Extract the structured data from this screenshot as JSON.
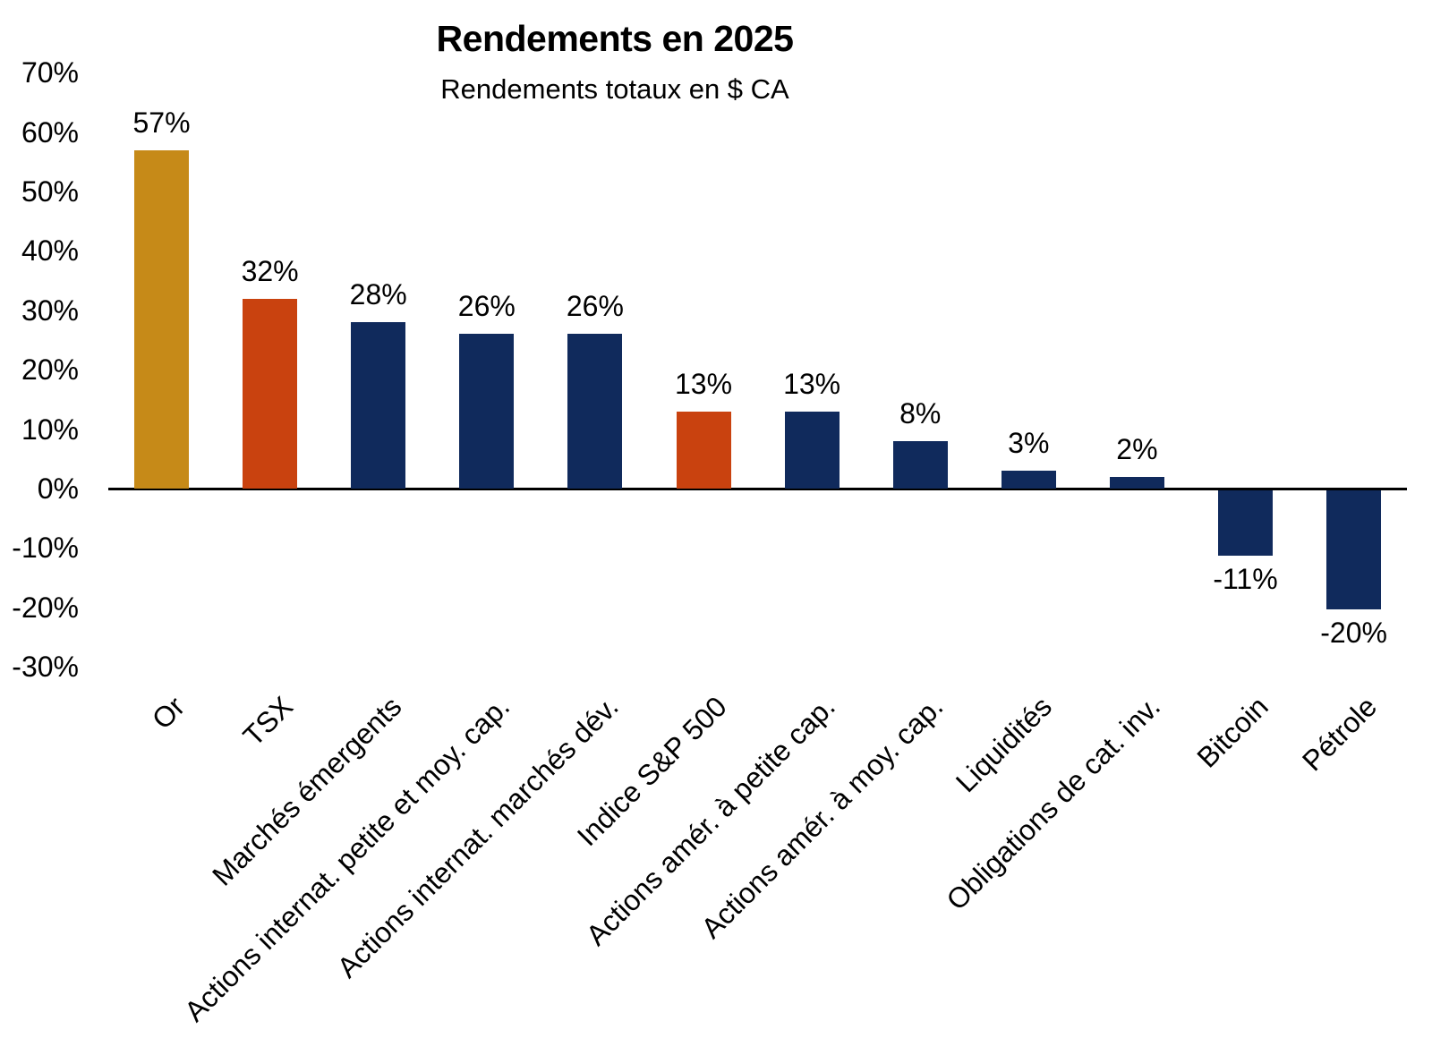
{
  "header": {
    "title": "Rendements en 2025",
    "subtitle": "Rendements totaux en $ CA"
  },
  "palette": {
    "gold": "#C68A18",
    "orange": "#C9420F",
    "navy": "#102A5C",
    "axis": "#000000",
    "background": "#FFFFFF",
    "text": "#000000"
  },
  "chart_data": {
    "type": "bar",
    "title": "Rendements en 2025",
    "subtitle": "Rendements totaux en $ CA",
    "categories": [
      "Or",
      "TSX",
      "Marchés émergents",
      "Actions internat. petite et moy. cap.",
      "Actions internat. marchés dév.",
      "Indice S&P 500",
      "Actions amér. à petite cap.",
      "Actions amér. à moy. cap.",
      "Liquidités",
      "Obligations de cat. inv.",
      "Bitcoin",
      "Pétrole"
    ],
    "values": [
      57,
      32,
      28,
      26,
      26,
      13,
      13,
      8,
      3,
      2,
      -11,
      -20
    ],
    "value_labels": [
      "57%",
      "32%",
      "28%",
      "26%",
      "26%",
      "13%",
      "13%",
      "8%",
      "3%",
      "2%",
      "-11%",
      "-20%"
    ],
    "bar_colors": [
      "gold",
      "orange",
      "navy",
      "navy",
      "navy",
      "orange",
      "navy",
      "navy",
      "navy",
      "navy",
      "navy",
      "navy"
    ],
    "ytick_labels": [
      "70%",
      "60%",
      "50%",
      "40%",
      "30%",
      "20%",
      "10%",
      "0%",
      "-10%",
      "-20%",
      "-30%"
    ],
    "ytick_values": [
      70,
      60,
      50,
      40,
      30,
      20,
      10,
      0,
      -10,
      -20,
      -30
    ],
    "ylim": [
      -30,
      70
    ],
    "xlabel": "",
    "ylabel": "",
    "grid": false,
    "legend": null
  }
}
